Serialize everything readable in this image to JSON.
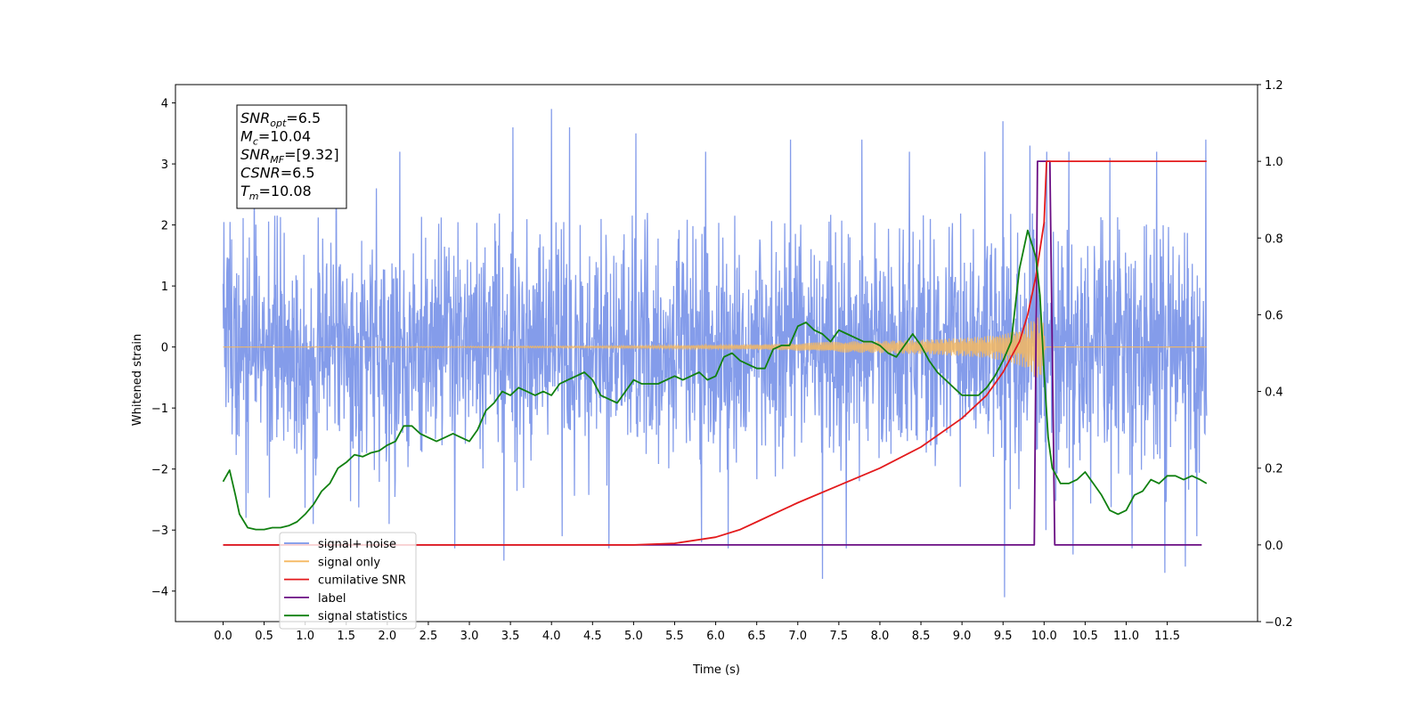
{
  "chart_data": {
    "type": "line",
    "title": "",
    "xlabel": "Time (s)",
    "ylabel": "Whitened strain",
    "xlim": [
      -0.58,
      12.6
    ],
    "ylim": [
      -4.5,
      4.3
    ],
    "y2lim": [
      -0.2,
      1.2
    ],
    "x_ticks": [
      0.0,
      0.5,
      1.0,
      1.5,
      2.0,
      2.5,
      3.0,
      3.5,
      4.0,
      4.5,
      5.0,
      5.5,
      6.0,
      6.5,
      7.0,
      7.5,
      8.0,
      8.5,
      9.0,
      9.5,
      10.0,
      10.5,
      11.0,
      11.5
    ],
    "x_tick_labels": [
      "0.0",
      "0.5",
      "1.0",
      "1.5",
      "2.0",
      "2.5",
      "3.0",
      "3.5",
      "4.0",
      "4.5",
      "5.0",
      "5.5",
      "6.0",
      "6.5",
      "7.0",
      "7.5",
      "8.0",
      "8.5",
      "9.0",
      "9.5",
      "10.0",
      "10.5",
      "11.0",
      "11.5"
    ],
    "y_ticks": [
      -4,
      -3,
      -2,
      -1,
      0,
      1,
      2,
      3,
      4
    ],
    "y_tick_labels": [
      "−4",
      "−3",
      "−2",
      "−1",
      "0",
      "1",
      "2",
      "3",
      "4"
    ],
    "y2_ticks": [
      -0.2,
      0.0,
      0.2,
      0.4,
      0.6,
      0.8,
      1.0,
      1.2
    ],
    "y2_tick_labels": [
      "−0.2",
      "0.0",
      "0.2",
      "0.4",
      "0.6",
      "0.8",
      "1.0",
      "1.2"
    ],
    "grid": false,
    "legend_position": "lower-left",
    "annotation": {
      "lines": [
        {
          "base": "SNR",
          "sub": "opt",
          "value": "=6.5"
        },
        {
          "base": "M",
          "sub": "c",
          "value": "=10.04"
        },
        {
          "base": "SNR",
          "sub": "MF",
          "value": "=[9.32]"
        },
        {
          "base": "CSNR",
          "sub": "",
          "value": "=6.5"
        },
        {
          "base": "T",
          "sub": "m",
          "value": "=10.08"
        }
      ]
    },
    "series": [
      {
        "name": "signal+ noise",
        "axis": "left",
        "color": "#7994e8",
        "x_start": 0.0,
        "x_end": 11.98,
        "envelope_max": 2.2,
        "peak_x": [
          0.38,
          1.38,
          1.87,
          2.15,
          3.42,
          3.53,
          4.0,
          4.22,
          5.03,
          5.88,
          6.91,
          7.78,
          8.36,
          9.28,
          9.5,
          9.83,
          10.03,
          10.3,
          10.8,
          11.37,
          11.97
        ],
        "peak_y": [
          2.9,
          3.5,
          2.6,
          3.2,
          3.6,
          3.6,
          3.9,
          3.6,
          3.5,
          3.2,
          3.4,
          3.4,
          3.2,
          3.2,
          3.7,
          3.3,
          3.2,
          3.2,
          3.1,
          3.2,
          3.4
        ],
        "trough_x": [
          0.28,
          1.1,
          2.02,
          2.82,
          3.42,
          4.13,
          4.7,
          5.83,
          6.15,
          7.3,
          7.59,
          9.52,
          10.02,
          10.35,
          11.07,
          11.47,
          11.72,
          11.86
        ],
        "trough_y": [
          -2.8,
          -2.9,
          -2.9,
          -3.3,
          -3.5,
          -3.1,
          -3.3,
          -3.2,
          -3.3,
          -3.8,
          -3.3,
          -4.1,
          -3.0,
          -3.4,
          -3.3,
          -3.7,
          -3.6,
          -3.1
        ]
      },
      {
        "name": "signal only",
        "axis": "left",
        "color": "#f5b860",
        "x": [
          0.0,
          3.0,
          5.0,
          6.5,
          7.0,
          7.5,
          8.0,
          8.5,
          9.0,
          9.3,
          9.5,
          9.7,
          9.8,
          9.9,
          9.98,
          10.02,
          11.98
        ],
        "amplitude": [
          0.0,
          0.01,
          0.02,
          0.04,
          0.06,
          0.09,
          0.1,
          0.12,
          0.15,
          0.18,
          0.22,
          0.3,
          0.38,
          0.5,
          0.55,
          0.0,
          0.0
        ]
      },
      {
        "name": "cumilative SNR",
        "axis": "right",
        "color": "#e31a1c",
        "x": [
          0.0,
          5.0,
          5.5,
          6.0,
          6.3,
          6.5,
          6.8,
          7.0,
          7.5,
          8.0,
          8.5,
          9.0,
          9.3,
          9.5,
          9.7,
          9.8,
          9.9,
          10.0,
          10.03,
          10.05,
          11.98
        ],
        "values": [
          0.0,
          0.0,
          0.004,
          0.02,
          0.04,
          0.06,
          0.09,
          0.11,
          0.155,
          0.2,
          0.255,
          0.33,
          0.39,
          0.45,
          0.53,
          0.6,
          0.7,
          0.84,
          1.0,
          1.0,
          1.0
        ]
      },
      {
        "name": "label",
        "axis": "right",
        "color": "#6a0d83",
        "x": [
          0.0,
          9.88,
          9.92,
          10.07,
          10.13,
          11.92
        ],
        "values": [
          0.0,
          0.0,
          1.0,
          1.0,
          0.0,
          0.0
        ]
      },
      {
        "name": "signal statistics",
        "axis": "right",
        "color": "#108010",
        "x": [
          0.0,
          0.08,
          0.15,
          0.2,
          0.3,
          0.4,
          0.5,
          0.6,
          0.7,
          0.8,
          0.9,
          1.0,
          1.1,
          1.2,
          1.3,
          1.4,
          1.5,
          1.6,
          1.7,
          1.8,
          1.9,
          2.0,
          2.1,
          2.2,
          2.3,
          2.4,
          2.5,
          2.6,
          2.7,
          2.8,
          2.9,
          3.0,
          3.1,
          3.2,
          3.3,
          3.4,
          3.5,
          3.6,
          3.7,
          3.8,
          3.9,
          4.0,
          4.1,
          4.2,
          4.3,
          4.4,
          4.5,
          4.6,
          4.7,
          4.8,
          4.9,
          5.0,
          5.1,
          5.2,
          5.3,
          5.4,
          5.5,
          5.6,
          5.7,
          5.8,
          5.9,
          6.0,
          6.1,
          6.2,
          6.3,
          6.4,
          6.5,
          6.6,
          6.7,
          6.8,
          6.9,
          7.0,
          7.1,
          7.2,
          7.3,
          7.4,
          7.5,
          7.6,
          7.7,
          7.8,
          7.9,
          8.0,
          8.1,
          8.2,
          8.3,
          8.4,
          8.5,
          8.6,
          8.7,
          8.8,
          8.9,
          9.0,
          9.1,
          9.2,
          9.3,
          9.4,
          9.5,
          9.6,
          9.7,
          9.8,
          9.9,
          9.95,
          10.0,
          10.05,
          10.1,
          10.2,
          10.3,
          10.4,
          10.5,
          10.6,
          10.7,
          10.8,
          10.9,
          11.0,
          11.1,
          11.2,
          11.3,
          11.4,
          11.5,
          11.6,
          11.7,
          11.8,
          11.9,
          11.98
        ],
        "values": [
          0.165,
          0.195,
          0.13,
          0.08,
          0.045,
          0.04,
          0.04,
          0.045,
          0.045,
          0.05,
          0.06,
          0.08,
          0.105,
          0.14,
          0.16,
          0.2,
          0.215,
          0.235,
          0.23,
          0.24,
          0.245,
          0.26,
          0.27,
          0.31,
          0.31,
          0.29,
          0.28,
          0.27,
          0.28,
          0.29,
          0.28,
          0.27,
          0.3,
          0.35,
          0.37,
          0.4,
          0.39,
          0.41,
          0.4,
          0.39,
          0.4,
          0.39,
          0.42,
          0.43,
          0.44,
          0.45,
          0.43,
          0.39,
          0.38,
          0.37,
          0.4,
          0.43,
          0.42,
          0.42,
          0.42,
          0.43,
          0.44,
          0.43,
          0.44,
          0.45,
          0.43,
          0.44,
          0.49,
          0.5,
          0.48,
          0.47,
          0.46,
          0.46,
          0.51,
          0.52,
          0.52,
          0.57,
          0.58,
          0.56,
          0.55,
          0.53,
          0.56,
          0.55,
          0.54,
          0.53,
          0.53,
          0.52,
          0.5,
          0.49,
          0.52,
          0.55,
          0.52,
          0.48,
          0.45,
          0.43,
          0.41,
          0.39,
          0.39,
          0.39,
          0.41,
          0.44,
          0.48,
          0.53,
          0.72,
          0.82,
          0.75,
          0.65,
          0.45,
          0.28,
          0.2,
          0.16,
          0.16,
          0.17,
          0.19,
          0.16,
          0.13,
          0.09,
          0.08,
          0.09,
          0.13,
          0.14,
          0.17,
          0.16,
          0.18,
          0.18,
          0.17,
          0.18,
          0.17,
          0.16
        ]
      }
    ]
  }
}
